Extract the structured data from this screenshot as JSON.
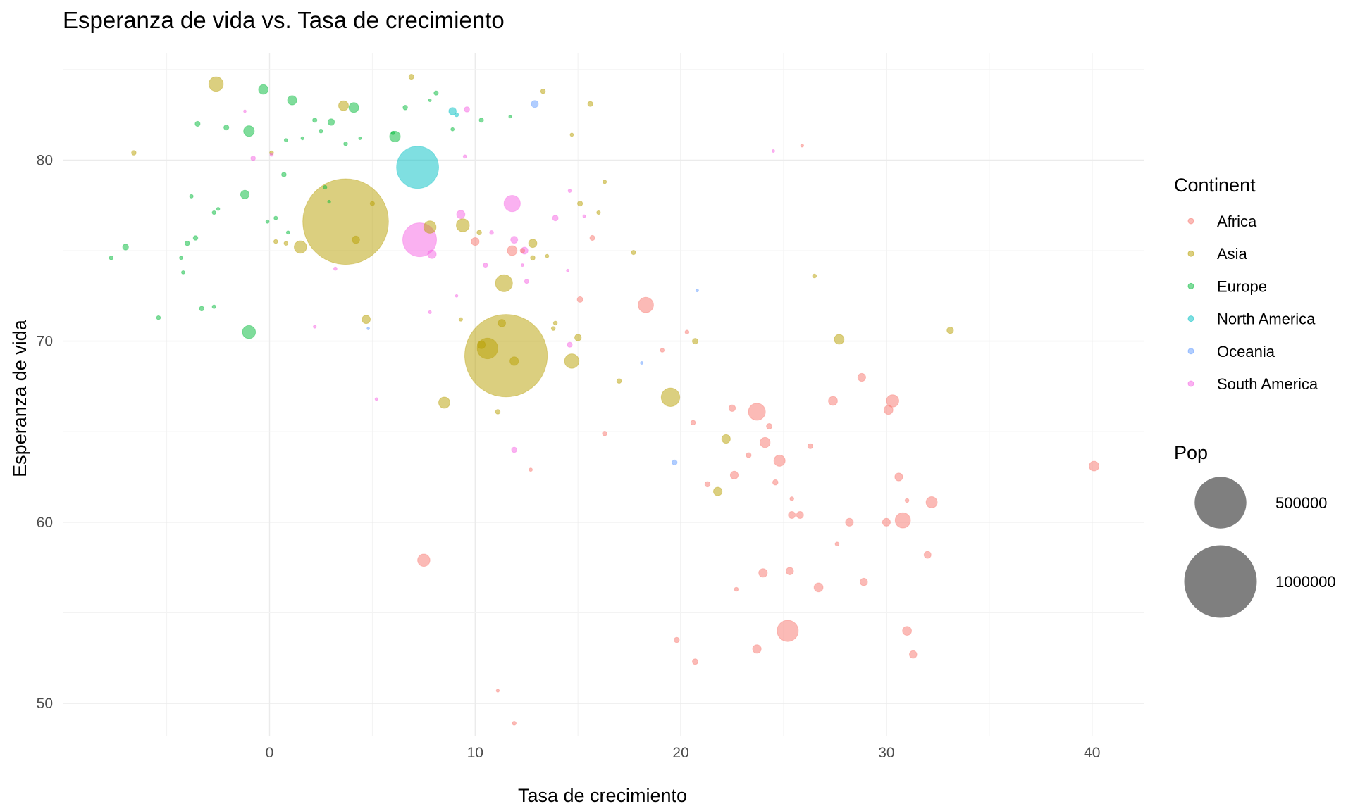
{
  "chart_data": {
    "type": "scatter",
    "title": "Esperanza de vida vs. Tasa de crecimiento",
    "xlabel": "Tasa de crecimiento",
    "ylabel": "Esperanza de vida",
    "xlim": [
      -10,
      42.5
    ],
    "ylim": [
      47,
      85.5
    ],
    "x_ticks": [
      0,
      10,
      20,
      30,
      40
    ],
    "y_ticks": [
      50,
      60,
      70,
      80
    ],
    "grid": true,
    "point_alpha": 0.5,
    "size_variable": "Pop",
    "color_variable": "Continent",
    "legend_position": "right",
    "legend": {
      "color_title": "Continent",
      "size_title": "Pop",
      "size_breaks": [
        500000,
        1000000
      ],
      "size_labels": [
        "500000",
        "1000000"
      ],
      "size_key_color": "#000000"
    },
    "series": [
      {
        "name": "Africa",
        "color": "#F8766D",
        "points": [
          [
            40.1,
            63.1,
            15000
          ],
          [
            32.2,
            61.1,
            20000
          ],
          [
            30.8,
            60.1,
            40000
          ],
          [
            30.3,
            66.7,
            25000
          ],
          [
            30.1,
            66.2,
            12000
          ],
          [
            30.6,
            62.5,
            9000
          ],
          [
            31.0,
            54.0,
            12000
          ],
          [
            31.3,
            52.7,
            8000
          ],
          [
            30.0,
            60.0,
            9000
          ],
          [
            32.0,
            58.2,
            7000
          ],
          [
            28.8,
            68.0,
            9000
          ],
          [
            28.9,
            56.7,
            8000
          ],
          [
            27.4,
            66.7,
            12000
          ],
          [
            26.7,
            56.4,
            12000
          ],
          [
            28.2,
            60.0,
            9000
          ],
          [
            25.8,
            60.4,
            7000
          ],
          [
            25.4,
            60.4,
            7000
          ],
          [
            25.3,
            57.3,
            8000
          ],
          [
            25.2,
            54.0,
            80000
          ],
          [
            24.8,
            63.4,
            20000
          ],
          [
            24.1,
            64.4,
            16000
          ],
          [
            23.7,
            66.1,
            50000
          ],
          [
            24.0,
            57.2,
            11000
          ],
          [
            23.7,
            53.0,
            11000
          ],
          [
            22.6,
            62.6,
            9000
          ],
          [
            22.5,
            66.3,
            6000
          ],
          [
            24.3,
            65.3,
            4000
          ],
          [
            21.3,
            62.1,
            3500
          ],
          [
            24.6,
            62.2,
            3500
          ],
          [
            23.3,
            63.7,
            3000
          ],
          [
            26.3,
            64.2,
            3000
          ],
          [
            20.7,
            52.3,
            4000
          ],
          [
            19.8,
            53.5,
            3500
          ],
          [
            18.3,
            72.0,
            40000
          ],
          [
            15.7,
            75.7,
            3000
          ],
          [
            12.3,
            75.0,
            2500
          ],
          [
            11.8,
            75.0,
            15000
          ],
          [
            10.0,
            75.5,
            9000
          ],
          [
            7.5,
            57.9,
            25000
          ],
          [
            15.1,
            72.3,
            4000
          ],
          [
            16.3,
            64.9,
            2500
          ],
          [
            20.6,
            65.5,
            2500
          ],
          [
            27.6,
            58.8,
            1500
          ],
          [
            25.4,
            61.3,
            1500
          ],
          [
            31.0,
            61.2,
            1500
          ],
          [
            22.7,
            56.3,
            1500
          ],
          [
            25.9,
            80.8,
            800
          ],
          [
            11.1,
            50.7,
            800
          ],
          [
            11.9,
            48.9,
            1500
          ],
          [
            20.3,
            70.5,
            1500
          ],
          [
            19.1,
            69.5,
            1500
          ],
          [
            12.7,
            62.9,
            1000
          ]
        ]
      },
      {
        "name": "Asia",
        "color": "#B79F00",
        "points": [
          [
            3.7,
            76.6,
            1400000
          ],
          [
            11.5,
            69.2,
            1300000
          ],
          [
            10.6,
            69.6,
            75000
          ],
          [
            19.5,
            66.9,
            60000
          ],
          [
            11.4,
            73.2,
            50000
          ],
          [
            -2.6,
            84.2,
            35000
          ],
          [
            14.7,
            68.9,
            35000
          ],
          [
            9.4,
            76.4,
            28000
          ],
          [
            7.8,
            76.3,
            25000
          ],
          [
            1.5,
            75.2,
            25000
          ],
          [
            8.5,
            66.6,
            20000
          ],
          [
            27.7,
            70.1,
            15000
          ],
          [
            3.6,
            83.0,
            15000
          ],
          [
            22.2,
            64.6,
            11000
          ],
          [
            21.8,
            61.7,
            11000
          ],
          [
            11.9,
            68.9,
            11000
          ],
          [
            4.7,
            71.2,
            10000
          ],
          [
            12.8,
            75.4,
            10000
          ],
          [
            10.3,
            69.8,
            9000
          ],
          [
            4.2,
            75.6,
            8000
          ],
          [
            11.3,
            71.0,
            8000
          ],
          [
            33.1,
            70.6,
            6000
          ],
          [
            15.0,
            70.2,
            6000
          ],
          [
            20.7,
            70.0,
            4000
          ],
          [
            6.9,
            84.6,
            3000
          ],
          [
            15.6,
            83.1,
            3000
          ],
          [
            13.3,
            83.8,
            2500
          ],
          [
            15.1,
            77.6,
            3000
          ],
          [
            -6.6,
            80.4,
            2500
          ],
          [
            12.8,
            74.6,
            2500
          ],
          [
            11.1,
            66.1,
            2500
          ],
          [
            17.0,
            67.8,
            2500
          ],
          [
            10.2,
            76.0,
            2500
          ],
          [
            5.0,
            77.6,
            2000
          ],
          [
            0.8,
            75.4,
            1500
          ],
          [
            13.9,
            71.0,
            1500
          ],
          [
            16.3,
            78.8,
            1200
          ],
          [
            26.5,
            73.6,
            1500
          ],
          [
            17.7,
            74.9,
            2000
          ],
          [
            13.8,
            70.7,
            1500
          ],
          [
            0.1,
            80.4,
            1500
          ],
          [
            0.3,
            75.5,
            1500
          ],
          [
            9.3,
            71.2,
            1200
          ],
          [
            14.7,
            81.4,
            1000
          ],
          [
            13.5,
            74.7,
            1000
          ],
          [
            16.0,
            77.1,
            1200
          ]
        ]
      },
      {
        "name": "Europe",
        "color": "#00BA38",
        "points": [
          [
            -1.0,
            70.5,
            28000
          ],
          [
            -1.0,
            81.6,
            18000
          ],
          [
            6.1,
            81.3,
            18000
          ],
          [
            -0.3,
            83.9,
            14000
          ],
          [
            1.1,
            83.3,
            13000
          ],
          [
            4.1,
            82.9,
            15000
          ],
          [
            -1.2,
            78.1,
            11000
          ],
          [
            3.0,
            82.1,
            6000
          ],
          [
            -7.0,
            75.2,
            4500
          ],
          [
            -3.5,
            82.0,
            3000
          ],
          [
            -2.1,
            81.8,
            3000
          ],
          [
            -3.6,
            75.7,
            2500
          ],
          [
            -4.0,
            75.4,
            2500
          ],
          [
            -3.3,
            71.8,
            2500
          ],
          [
            0.7,
            79.2,
            2500
          ],
          [
            6.6,
            82.9,
            2500
          ],
          [
            8.1,
            83.7,
            2000
          ],
          [
            10.3,
            82.2,
            2000
          ],
          [
            2.2,
            82.2,
            2000
          ],
          [
            -7.7,
            74.6,
            1500
          ],
          [
            -5.4,
            71.3,
            1500
          ],
          [
            -2.7,
            77.1,
            1200
          ],
          [
            -3.8,
            78.0,
            1200
          ],
          [
            -2.7,
            71.9,
            1200
          ],
          [
            -4.3,
            74.6,
            1000
          ],
          [
            2.5,
            81.6,
            1500
          ],
          [
            0.8,
            81.1,
            1000
          ],
          [
            8.9,
            81.7,
            1000
          ],
          [
            0.3,
            76.8,
            1200
          ],
          [
            -0.1,
            76.6,
            1000
          ],
          [
            0.9,
            76.0,
            1000
          ],
          [
            2.9,
            77.7,
            800
          ],
          [
            2.7,
            78.5,
            1200
          ],
          [
            4.4,
            81.2,
            600
          ],
          [
            7.8,
            83.3,
            600
          ],
          [
            11.7,
            82.4,
            600
          ],
          [
            -4.2,
            73.8,
            1000
          ],
          [
            1.6,
            81.2,
            800
          ],
          [
            -2.5,
            77.3,
            900
          ],
          [
            3.7,
            80.9,
            1500
          ],
          [
            6.0,
            81.5,
            1200
          ]
        ]
      },
      {
        "name": "North America",
        "color": "#00BFC4",
        "points": [
          [
            7.2,
            79.6,
            330000
          ],
          [
            8.9,
            82.7,
            8000
          ],
          [
            9.1,
            82.5,
            1500
          ]
        ]
      },
      {
        "name": "Oceania",
        "color": "#619CFF",
        "points": [
          [
            12.9,
            83.1,
            7000
          ],
          [
            19.7,
            63.3,
            3000
          ],
          [
            20.8,
            72.8,
            600
          ],
          [
            18.1,
            68.8,
            600
          ],
          [
            4.8,
            70.7,
            500
          ]
        ]
      },
      {
        "name": "South America",
        "color": "#F564E3",
        "points": [
          [
            7.3,
            75.6,
            210000
          ],
          [
            11.8,
            77.6,
            45000
          ],
          [
            9.3,
            77.0,
            10000
          ],
          [
            7.9,
            74.8,
            11000
          ],
          [
            11.9,
            75.6,
            7000
          ],
          [
            12.4,
            75.0,
            7000
          ],
          [
            9.6,
            82.8,
            3500
          ],
          [
            13.9,
            76.8,
            4000
          ],
          [
            14.6,
            69.8,
            3000
          ],
          [
            -0.8,
            80.1,
            2500
          ],
          [
            11.9,
            64.0,
            3500
          ],
          [
            10.5,
            74.2,
            2000
          ],
          [
            12.5,
            73.3,
            1800
          ],
          [
            10.8,
            76.0,
            1500
          ],
          [
            14.6,
            78.3,
            1000
          ],
          [
            3.2,
            74.0,
            1000
          ],
          [
            2.2,
            70.8,
            800
          ],
          [
            0.1,
            80.3,
            1000
          ],
          [
            9.5,
            80.2,
            1000
          ],
          [
            7.8,
            71.6,
            700
          ],
          [
            12.3,
            74.2,
            600
          ],
          [
            24.5,
            80.5,
            600
          ],
          [
            5.2,
            66.8,
            600
          ],
          [
            15.3,
            76.9,
            600
          ],
          [
            14.5,
            73.9,
            500
          ],
          [
            9.1,
            72.5,
            500
          ],
          [
            -1.2,
            82.7,
            500
          ]
        ]
      }
    ]
  }
}
